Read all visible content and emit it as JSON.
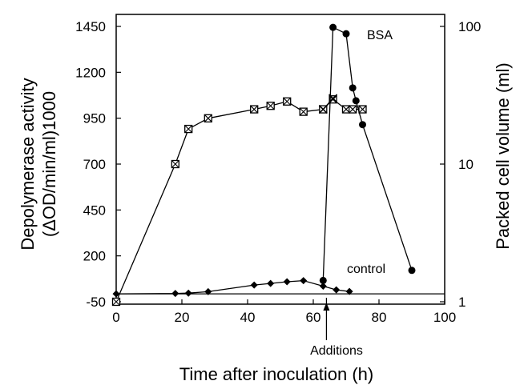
{
  "chart_data": {
    "type": "scatter",
    "xlabel": "Time after inoculation (h)",
    "ylabel_left_line1": "Depolymerase activity",
    "ylabel_left_line2": "(ΔOD/min/ml)1000",
    "ylabel_right": "Packed cell volume (ml)",
    "x_axis": {
      "min": 0,
      "max": 100,
      "ticks": [
        0,
        20,
        40,
        60,
        80,
        100
      ]
    },
    "y_left": {
      "min": -50,
      "max": 1450,
      "ticks": [
        -50,
        200,
        450,
        700,
        950,
        1200,
        1450
      ]
    },
    "y_right": {
      "scale": "log",
      "min": 1,
      "max": 100,
      "ticks": [
        1,
        10,
        100
      ]
    },
    "series": [
      {
        "key": "cell_volume",
        "marker": "square-x",
        "axis": "right",
        "x": [
          0,
          18,
          22,
          28,
          42,
          47,
          52,
          57,
          63,
          66,
          70,
          72,
          75
        ],
        "y": [
          1.0,
          10.0,
          18.0,
          21.5,
          25.0,
          26.5,
          28.5,
          24.0,
          25.0,
          29.5,
          25.0,
          25.0,
          25.0
        ]
      },
      {
        "key": "bsa_spike",
        "marker": "x",
        "axis": "right",
        "x": [
          63,
          66
        ],
        "y": [
          25.0,
          30.0
        ]
      },
      {
        "key": "bsa",
        "name": "BSA",
        "marker": "circle",
        "axis": "left",
        "x": [
          63,
          66,
          70,
          72,
          73,
          75,
          90
        ],
        "y": [
          66,
          1445,
          1410,
          1115,
          1045,
          915,
          121
        ]
      },
      {
        "key": "control",
        "name": "control",
        "marker": "diamond",
        "axis": "left",
        "x": [
          0,
          18,
          22,
          28,
          42,
          47,
          52,
          57,
          63,
          67,
          71
        ],
        "y": [
          -7,
          -5,
          -3,
          5,
          41,
          50,
          59,
          65,
          35,
          15,
          6
        ]
      }
    ],
    "baseline_left_y": -7,
    "annotations": {
      "bsa_label": "BSA",
      "control_label": "control",
      "additions_label": "Additions",
      "additions_x": 64
    }
  }
}
